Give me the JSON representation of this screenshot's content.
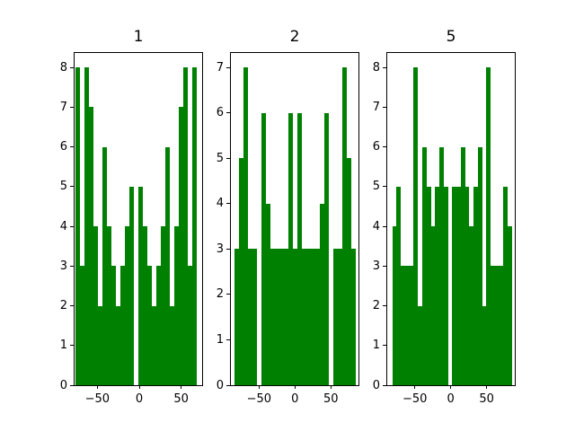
{
  "figure": {
    "background": "#ffffff",
    "bar_color": "#008000",
    "axis_color": "#000000",
    "text_color": "#000000"
  },
  "chart_data": [
    {
      "type": "bar",
      "subtype": "histogram",
      "title": "1",
      "xlabel": "",
      "ylabel": "",
      "grid": false,
      "legend": false,
      "ylim": [
        0,
        8.4
      ],
      "yticks": [
        0,
        1,
        2,
        3,
        4,
        5,
        6,
        7,
        8
      ],
      "xticks": [
        {
          "label": "−50",
          "value": -50
        },
        {
          "label": "0",
          "value": 0
        },
        {
          "label": "50",
          "value": 50
        }
      ],
      "bin_values": [
        8,
        3,
        8,
        7,
        4,
        2,
        6,
        4,
        3,
        2,
        3,
        4,
        5,
        0,
        5,
        4,
        3,
        2,
        3,
        4,
        6,
        2,
        4,
        7,
        8,
        3,
        8
      ]
    },
    {
      "type": "bar",
      "subtype": "histogram",
      "title": "2",
      "xlabel": "",
      "ylabel": "",
      "grid": false,
      "legend": false,
      "ylim": [
        0,
        7.34
      ],
      "yticks": [
        0,
        1,
        2,
        3,
        4,
        5,
        6,
        7
      ],
      "xticks": [
        {
          "label": "−50",
          "value": -50
        },
        {
          "label": "0",
          "value": 0
        },
        {
          "label": "50",
          "value": 50
        }
      ],
      "bin_values": [
        3,
        5,
        7,
        3,
        3,
        0,
        6,
        4,
        3,
        3,
        3,
        3,
        6,
        3,
        6,
        3,
        3,
        3,
        3,
        4,
        6,
        0,
        3,
        3,
        7,
        5,
        3
      ]
    },
    {
      "type": "bar",
      "subtype": "histogram",
      "title": "5",
      "xlabel": "",
      "ylabel": "",
      "grid": false,
      "legend": false,
      "ylim": [
        0,
        8.4
      ],
      "yticks": [
        0,
        1,
        2,
        3,
        4,
        5,
        6,
        7,
        8
      ],
      "xticks": [
        {
          "label": "−50",
          "value": -50
        },
        {
          "label": "0",
          "value": 0
        },
        {
          "label": "50",
          "value": 50
        }
      ],
      "bin_values": [
        4,
        5,
        3,
        3,
        3,
        8,
        2,
        6,
        5,
        4,
        5,
        6,
        5,
        0,
        5,
        5,
        6,
        5,
        4,
        5,
        6,
        2,
        8,
        3,
        3,
        3,
        5,
        4
      ]
    }
  ]
}
